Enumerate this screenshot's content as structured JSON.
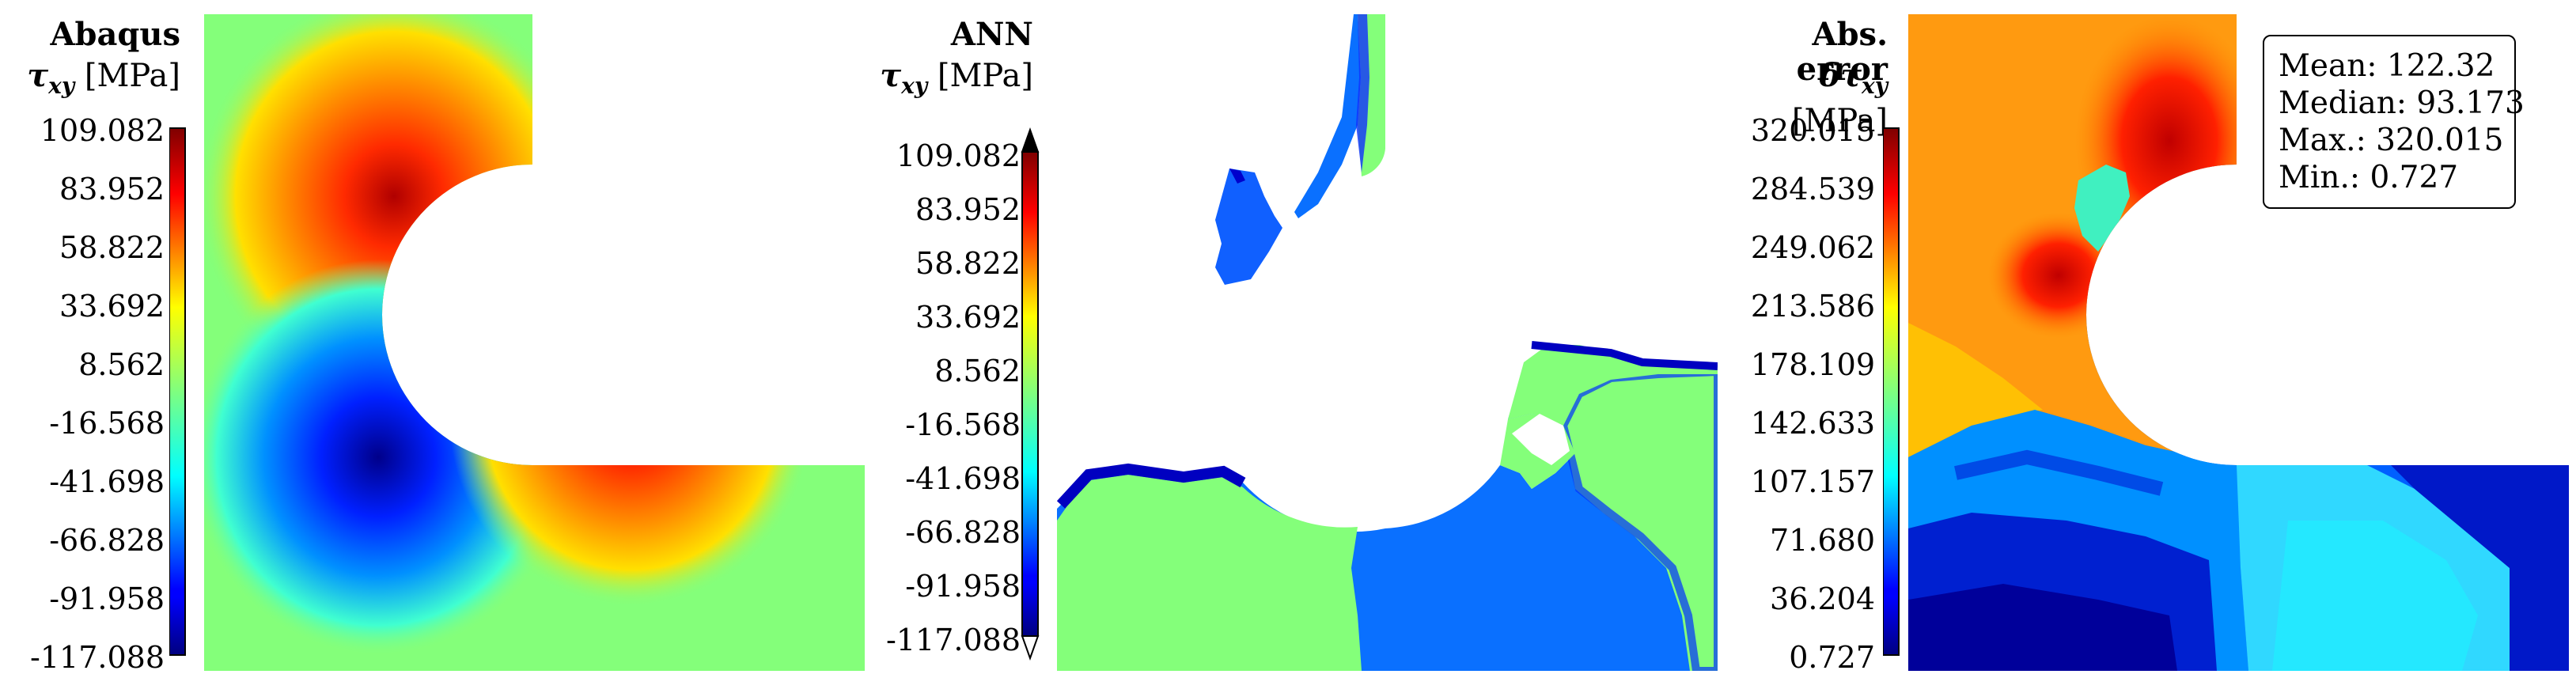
{
  "colors": {
    "jet_stops": [
      "#00007f",
      "#0000ff",
      "#007fff",
      "#00ffff",
      "#7fff7f",
      "#ffff00",
      "#ff7f00",
      "#ff0000",
      "#7f0000"
    ]
  },
  "panels": [
    {
      "title": "Abaqus",
      "unit_symbol": "τxy",
      "unit_text": "[MPa]",
      "ticks": [
        "109.082",
        "83.952",
        "58.822",
        "33.692",
        "8.562",
        "-16.568",
        "-41.698",
        "-66.828",
        "-91.958",
        "-117.088"
      ]
    },
    {
      "title": "ANN",
      "unit_symbol": "τxy",
      "unit_text": "[MPa]",
      "ticks": [
        "109.082",
        "83.952",
        "58.822",
        "33.692",
        "8.562",
        "-16.568",
        "-41.698",
        "-66.828",
        "-91.958",
        "-117.088"
      ]
    },
    {
      "title": "Abs. error",
      "unit_symbol": "δτxy",
      "unit_text": "[MPa]",
      "ticks": [
        "320.015",
        "284.539",
        "249.062",
        "213.586",
        "178.109",
        "142.633",
        "107.157",
        "71.680",
        "36.204",
        "0.727"
      ]
    }
  ],
  "stats": {
    "mean": "Mean: 122.32",
    "median": "Median: 93.173",
    "max": "Max.: 320.015",
    "min": "Min.: 0.727"
  },
  "chart_data": [
    {
      "type": "heatmap",
      "title": "Abaqus",
      "colorbar_label": "τxy [MPa]",
      "colorbar_range": [
        -117.088,
        109.082
      ],
      "colorbar_ticks": [
        109.082,
        83.952,
        58.822,
        33.692,
        8.562,
        -16.568,
        -41.698,
        -66.828,
        -91.958,
        -117.088
      ]
    },
    {
      "type": "heatmap",
      "title": "ANN",
      "colorbar_label": "τxy [MPa]",
      "colorbar_range": [
        -117.088,
        109.082
      ],
      "colorbar_ticks": [
        109.082,
        83.952,
        58.822,
        33.692,
        8.562,
        -16.568,
        -41.698,
        -66.828,
        -91.958,
        -117.088
      ]
    },
    {
      "type": "heatmap",
      "title": "Abs. error",
      "colorbar_label": "δτxy [MPa]",
      "colorbar_range": [
        0.727,
        320.015
      ],
      "colorbar_ticks": [
        320.015,
        284.539,
        249.062,
        213.586,
        178.109,
        142.633,
        107.157,
        71.68,
        36.204,
        0.727
      ],
      "statistics": {
        "mean": 122.32,
        "median": 93.173,
        "max": 320.015,
        "min": 0.727
      }
    }
  ]
}
